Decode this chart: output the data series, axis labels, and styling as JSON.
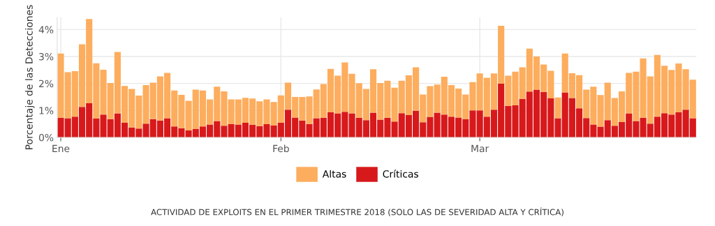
{
  "chart_data": {
    "type": "bar",
    "stacked": true,
    "ylabel": "Porcentaje de las Detecciones",
    "categories": [
      "Ene",
      null,
      null,
      null,
      null,
      null,
      null,
      null,
      null,
      null,
      null,
      null,
      null,
      null,
      null,
      null,
      null,
      null,
      null,
      null,
      null,
      null,
      null,
      null,
      null,
      null,
      null,
      null,
      null,
      null,
      null,
      "Feb",
      null,
      null,
      null,
      null,
      null,
      null,
      null,
      null,
      null,
      null,
      null,
      null,
      null,
      null,
      null,
      null,
      null,
      null,
      null,
      null,
      null,
      null,
      null,
      null,
      null,
      null,
      null,
      "Mar",
      null,
      null,
      null,
      null,
      null,
      null,
      null,
      null,
      null,
      null,
      null,
      null,
      null,
      null,
      null,
      null,
      null,
      null,
      null,
      null,
      null,
      null,
      null,
      null,
      null,
      null,
      null,
      null,
      null,
      null
    ],
    "series": [
      {
        "name": "Críticas",
        "color": "#d7191c",
        "values": [
          0.73,
          0.71,
          0.77,
          1.13,
          1.27,
          0.7,
          0.85,
          0.68,
          0.89,
          0.54,
          0.37,
          0.33,
          0.51,
          0.68,
          0.63,
          0.71,
          0.41,
          0.34,
          0.26,
          0.31,
          0.41,
          0.48,
          0.61,
          0.43,
          0.49,
          0.48,
          0.54,
          0.47,
          0.42,
          0.49,
          0.44,
          0.55,
          1.03,
          0.74,
          0.63,
          0.5,
          0.71,
          0.73,
          0.93,
          0.89,
          0.95,
          0.89,
          0.73,
          0.64,
          0.92,
          0.66,
          0.73,
          0.59,
          0.9,
          0.83,
          0.99,
          0.56,
          0.76,
          0.92,
          0.85,
          0.77,
          0.74,
          0.67,
          1.0,
          1.0,
          0.77,
          1.03,
          2.0,
          1.17,
          1.19,
          1.43,
          1.7,
          1.77,
          1.69,
          1.45,
          0.71,
          1.67,
          1.46,
          1.08,
          0.72,
          0.48,
          0.4,
          0.64,
          0.43,
          0.57,
          0.89,
          0.61,
          0.73,
          0.51,
          0.77,
          0.9,
          0.85,
          0.93,
          1.03,
          0.71
        ]
      },
      {
        "name": "Altas",
        "color": "#fdad5e",
        "values": [
          2.38,
          1.71,
          1.69,
          2.32,
          3.12,
          2.05,
          1.66,
          1.34,
          2.28,
          1.37,
          1.43,
          1.22,
          1.43,
          1.35,
          1.63,
          1.68,
          1.33,
          1.24,
          1.1,
          1.46,
          1.33,
          0.93,
          1.27,
          1.28,
          0.92,
          0.93,
          0.93,
          0.97,
          0.92,
          0.92,
          0.87,
          1.01,
          1.0,
          0.76,
          0.87,
          1.02,
          1.07,
          1.25,
          1.61,
          1.4,
          1.83,
          1.47,
          1.28,
          1.16,
          1.61,
          1.36,
          1.37,
          1.25,
          1.2,
          1.47,
          1.61,
          1.03,
          1.14,
          1.04,
          1.4,
          1.17,
          1.07,
          0.92,
          1.05,
          1.37,
          1.44,
          1.34,
          2.14,
          1.12,
          1.25,
          1.17,
          1.59,
          1.23,
          1.01,
          1.02,
          0.77,
          1.44,
          0.92,
          1.23,
          1.05,
          1.4,
          1.17,
          1.39,
          1.03,
          1.14,
          1.5,
          1.83,
          2.2,
          1.75,
          2.29,
          1.76,
          1.65,
          1.81,
          1.5,
          1.43
        ]
      }
    ],
    "ylim": [
      0,
      4.45
    ],
    "yticks": [
      {
        "value": 0,
        "label": "0%"
      },
      {
        "value": 1,
        "label": "1%"
      },
      {
        "value": 2,
        "label": "2%"
      },
      {
        "value": 3,
        "label": "3%"
      },
      {
        "value": 4,
        "label": "4%"
      }
    ],
    "grid": true,
    "legend": "bottom",
    "annotations": [
      "ACTIVIDAD DE EXPLOITS EN EL PRIMER TRIMESTRE 2018 (SOLO LAS DE SEVERIDAD ALTA Y CRÍTICA)"
    ]
  }
}
